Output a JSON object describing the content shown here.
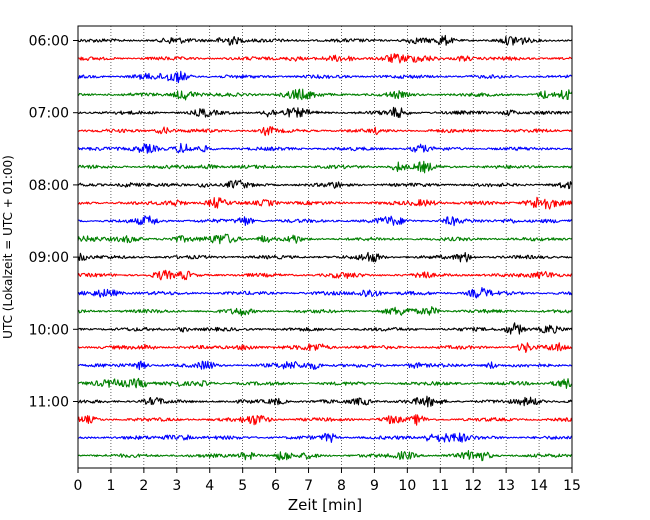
{
  "chart_data": {
    "type": "line",
    "title": "",
    "xlabel": "Zeit  [min]",
    "ylabel": "UTC (Lokalzeit = UTC + 01:00)",
    "xlim": [
      0,
      15
    ],
    "x_ticks": [
      "0",
      "1",
      "2",
      "3",
      "4",
      "5",
      "6",
      "7",
      "8",
      "9",
      "10",
      "11",
      "12",
      "13",
      "14",
      "15"
    ],
    "y_ticks": [
      {
        "label": "06:00",
        "row": 0
      },
      {
        "label": "07:00",
        "row": 4
      },
      {
        "label": "08:00",
        "row": 8
      },
      {
        "label": "09:00",
        "row": 12
      },
      {
        "label": "10:00",
        "row": 16
      },
      {
        "label": "11:00",
        "row": 20
      }
    ],
    "row_interval_min": 15,
    "grid": {
      "vertical_dotted": true,
      "horizontal": false
    },
    "series_colors": [
      "#000000",
      "#ff0000",
      "#0000ff",
      "#008000"
    ],
    "rows": [
      {
        "start": "06:00"
      },
      {
        "start": "06:15"
      },
      {
        "start": "06:30"
      },
      {
        "start": "06:45"
      },
      {
        "start": "07:00"
      },
      {
        "start": "07:15"
      },
      {
        "start": "07:30"
      },
      {
        "start": "07:45"
      },
      {
        "start": "08:00"
      },
      {
        "start": "08:15"
      },
      {
        "start": "08:30"
      },
      {
        "start": "08:45"
      },
      {
        "start": "09:00"
      },
      {
        "start": "09:15"
      },
      {
        "start": "09:30"
      },
      {
        "start": "09:45"
      },
      {
        "start": "10:00"
      },
      {
        "start": "10:15"
      },
      {
        "start": "10:30"
      },
      {
        "start": "10:45"
      },
      {
        "start": "11:00"
      },
      {
        "start": "11:15"
      },
      {
        "start": "11:30"
      },
      {
        "start": "11:45"
      }
    ]
  }
}
